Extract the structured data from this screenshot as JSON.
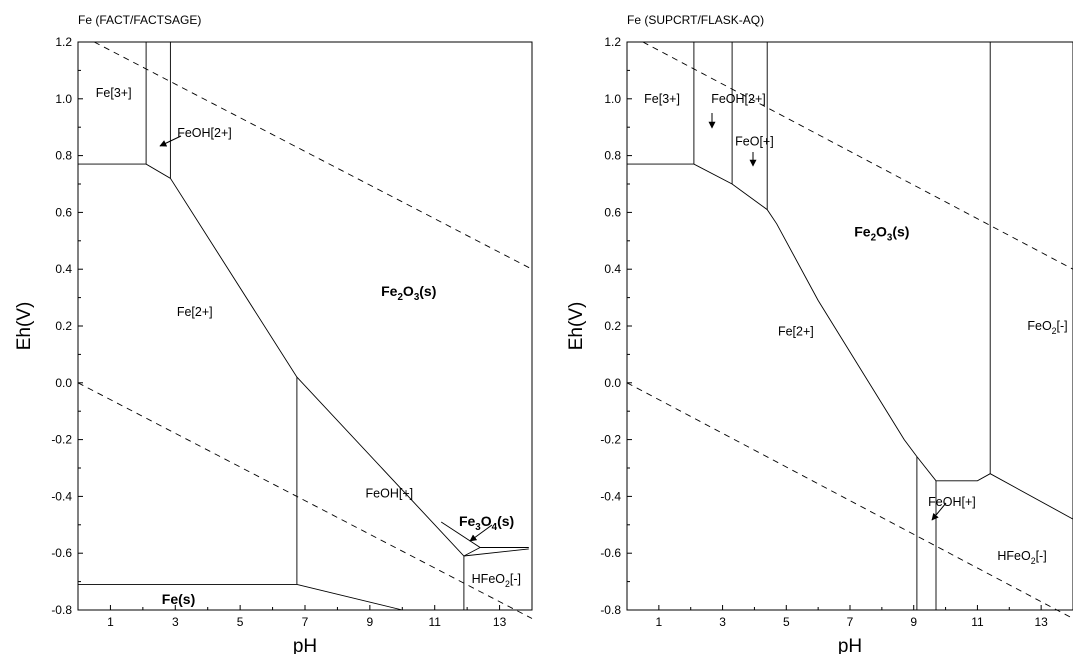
{
  "chart_data": [
    {
      "type": "line",
      "title": "Fe (FACT/FACTSAGE)",
      "xlabel": "pH",
      "ylabel": "Eh(V)",
      "xlim": [
        0,
        14
      ],
      "ylim": [
        -0.8,
        1.2
      ],
      "xticks": [
        "1",
        "3",
        "5",
        "7",
        "9",
        "11",
        "13"
      ],
      "yticks": [
        "1.2",
        "1.0",
        "0.8",
        "0.6",
        "0.4",
        "0.2",
        "0.0",
        "-0.2",
        "-0.4",
        "-0.6",
        "-0.8"
      ],
      "grid": false,
      "dashed_lines": [
        {
          "points": [
            [
              0,
              0.0
            ],
            [
              14,
              -0.83
            ]
          ]
        },
        {
          "points": [
            [
              0.5,
              1.2
            ],
            [
              14,
              0.4
            ]
          ]
        }
      ],
      "boundaries": [
        {
          "points": [
            [
              0,
              0.77
            ],
            [
              2.1,
              0.77
            ],
            [
              2.85,
              0.72
            ],
            [
              6.75,
              0.02
            ],
            [
              11.9,
              -0.61
            ],
            [
              13.9,
              -0.585
            ]
          ]
        },
        {
          "points": [
            [
              2.1,
              0.77
            ],
            [
              2.1,
              1.2
            ]
          ]
        },
        {
          "points": [
            [
              2.85,
              0.72
            ],
            [
              2.85,
              1.2
            ]
          ]
        },
        {
          "points": [
            [
              6.75,
              0.02
            ],
            [
              6.75,
              -0.71
            ]
          ]
        },
        {
          "points": [
            [
              0,
              -0.71
            ],
            [
              6.75,
              -0.71
            ],
            [
              10.0,
              -0.8
            ]
          ]
        },
        {
          "points": [
            [
              11.9,
              -0.61
            ],
            [
              11.9,
              -0.8
            ]
          ]
        },
        {
          "points": [
            [
              11.2,
              -0.49
            ],
            [
              12.4,
              -0.58
            ],
            [
              11.9,
              -0.61
            ]
          ]
        },
        {
          "points": [
            [
              12.4,
              -0.58
            ],
            [
              13.9,
              -0.58
            ]
          ]
        }
      ],
      "regions": [
        {
          "label": "Fe[3+]",
          "pH": 1.1,
          "Eh": 1.02
        },
        {
          "label": "FeOH[2+]",
          "pH": 3.9,
          "Eh": 0.88
        },
        {
          "label": "Fe[2+]",
          "pH": 3.6,
          "Eh": 0.25
        },
        {
          "label": "Fe₂O₃(s)",
          "pH": 10.2,
          "Eh": 0.32,
          "bold": true
        },
        {
          "label": "FeOH[+]",
          "pH": 9.6,
          "Eh": -0.39
        },
        {
          "label": "Fe₃O₄(s)",
          "pH": 12.6,
          "Eh": -0.49,
          "bold": true
        },
        {
          "label": "HFeO₂[-]",
          "pH": 12.9,
          "Eh": -0.69
        },
        {
          "label": "Fe(s)",
          "pH": 3.1,
          "Eh": -0.765,
          "bold": true
        }
      ]
    },
    {
      "type": "line",
      "title": "Fe (SUPCRT/FLASK-AQ)",
      "xlabel": "pH",
      "ylabel": "Eh(V)",
      "xlim": [
        0,
        14
      ],
      "ylim": [
        -0.8,
        1.2
      ],
      "xticks": [
        "1",
        "3",
        "5",
        "7",
        "9",
        "11",
        "13"
      ],
      "yticks": [
        "1.2",
        "1.0",
        "0.8",
        "0.6",
        "0.4",
        "0.2",
        "0.0",
        "-0.2",
        "-0.4",
        "-0.6",
        "-0.8"
      ],
      "grid": false,
      "dashed_lines": [
        {
          "points": [
            [
              0,
              0.0
            ],
            [
              14,
              -0.83
            ]
          ]
        },
        {
          "points": [
            [
              0.5,
              1.2
            ],
            [
              14,
              0.4
            ]
          ]
        }
      ],
      "boundaries": [
        {
          "points": [
            [
              0,
              0.77
            ],
            [
              2.1,
              0.77
            ],
            [
              3.3,
              0.7
            ],
            [
              4.4,
              0.61
            ],
            [
              4.7,
              0.56
            ],
            [
              6.0,
              0.29
            ],
            [
              8.7,
              -0.2
            ],
            [
              9.1,
              -0.26
            ],
            [
              9.7,
              -0.345
            ],
            [
              11.0,
              -0.345
            ],
            [
              11.4,
              -0.32
            ],
            [
              14,
              -0.48
            ]
          ]
        },
        {
          "points": [
            [
              2.1,
              0.77
            ],
            [
              2.1,
              1.2
            ]
          ]
        },
        {
          "points": [
            [
              3.3,
              0.7
            ],
            [
              3.3,
              1.2
            ]
          ]
        },
        {
          "points": [
            [
              4.4,
              0.61
            ],
            [
              4.4,
              1.2
            ]
          ]
        },
        {
          "points": [
            [
              0,
              1.2
            ],
            [
              14,
              1.2
            ]
          ]
        },
        {
          "points": [
            [
              11.4,
              -0.32
            ],
            [
              11.4,
              1.2
            ]
          ]
        },
        {
          "points": [
            [
              9.1,
              -0.26
            ],
            [
              9.1,
              -0.8
            ]
          ]
        },
        {
          "points": [
            [
              9.7,
              -0.345
            ],
            [
              9.7,
              -0.8
            ]
          ]
        }
      ],
      "regions": [
        {
          "label": "Fe[3+]",
          "pH": 1.1,
          "Eh": 1.0
        },
        {
          "label": "FeOH[2+]",
          "pH": 3.5,
          "Eh": 1.0
        },
        {
          "label": "FeO[+]",
          "pH": 4.0,
          "Eh": 0.85
        },
        {
          "label": "Fe₂O₃(s)",
          "pH": 8.0,
          "Eh": 0.53,
          "bold": true
        },
        {
          "label": "Fe[2+]",
          "pH": 5.3,
          "Eh": 0.18
        },
        {
          "label": "FeO₂[-]",
          "pH": 13.2,
          "Eh": 0.2
        },
        {
          "label": "FeOH[+]",
          "pH": 10.2,
          "Eh": -0.42
        },
        {
          "label": "HFeO₂[-]",
          "pH": 12.4,
          "Eh": -0.61
        }
      ]
    }
  ]
}
